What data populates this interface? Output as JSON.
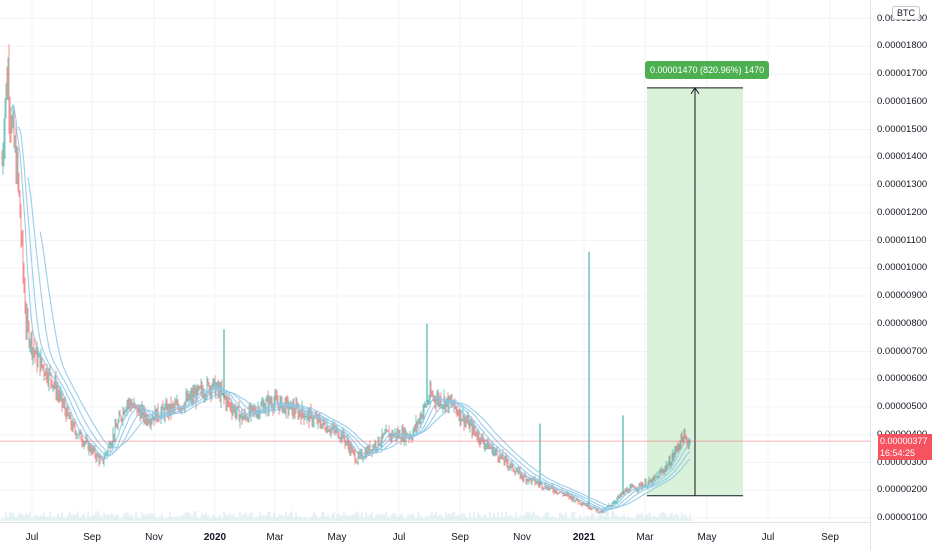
{
  "symbol_currency": "BTC",
  "last_price": "0.00000377",
  "countdown": "16:54:25",
  "measure_label": "0.00001470 (820.96%) 1470",
  "colors": {
    "up": "#26a69a",
    "down": "#ef5350",
    "ma": "#8ec9e8",
    "price_line": "#f7525f",
    "measure_fill": "#d6efd6",
    "measure_label": "#4caf50"
  },
  "chart_data": {
    "type": "candlestick",
    "y_tick_labels": [
      "0.00001900",
      "0.00001800",
      "0.00001700",
      "0.00001600",
      "0.00001500",
      "0.00001400",
      "0.00001300",
      "0.00001200",
      "0.00001100",
      "0.00001000",
      "0.00000900",
      "0.00000800",
      "0.00000700",
      "0.00000600",
      "0.00000500",
      "0.00000400",
      "0.00000300",
      "0.00000200",
      "0.00000100"
    ],
    "x_tick_labels": [
      "Jul",
      "Sep",
      "Nov",
      "2020",
      "Mar",
      "May",
      "Jul",
      "Sep",
      "Nov",
      "2021",
      "Mar",
      "May",
      "Jul",
      "Sep"
    ],
    "ylim": [
      9e-07,
      1.92e-05
    ],
    "price_path": [
      {
        "t": 0,
        "v": 1.38e-05
      },
      {
        "t": 3,
        "v": 1.6e-05
      },
      {
        "t": 6,
        "v": 1.7e-05
      },
      {
        "t": 10,
        "v": 1.5e-05
      },
      {
        "t": 16,
        "v": 1.32e-05
      },
      {
        "t": 24,
        "v": 8e-06
      },
      {
        "t": 34,
        "v": 6.8e-06
      },
      {
        "t": 50,
        "v": 6e-06
      },
      {
        "t": 70,
        "v": 4.3e-06
      },
      {
        "t": 100,
        "v": 3e-06
      },
      {
        "t": 125,
        "v": 5.2e-06
      },
      {
        "t": 145,
        "v": 4.6e-06
      },
      {
        "t": 175,
        "v": 5e-06
      },
      {
        "t": 210,
        "v": 5.8e-06
      },
      {
        "t": 240,
        "v": 4.6e-06
      },
      {
        "t": 270,
        "v": 5.2e-06
      },
      {
        "t": 300,
        "v": 4.8e-06
      },
      {
        "t": 340,
        "v": 4e-06
      },
      {
        "t": 355,
        "v": 3.1e-06
      },
      {
        "t": 385,
        "v": 4e-06
      },
      {
        "t": 410,
        "v": 4e-06
      },
      {
        "t": 428,
        "v": 5.4e-06
      },
      {
        "t": 450,
        "v": 5.1e-06
      },
      {
        "t": 480,
        "v": 3.8e-06
      },
      {
        "t": 520,
        "v": 2.5e-06
      },
      {
        "t": 560,
        "v": 1.9e-06
      },
      {
        "t": 600,
        "v": 1.2e-06
      },
      {
        "t": 625,
        "v": 2e-06
      },
      {
        "t": 650,
        "v": 2.3e-06
      },
      {
        "t": 668,
        "v": 3e-06
      },
      {
        "t": 680,
        "v": 3.9e-06
      },
      {
        "t": 688,
        "v": 3.7e-06
      }
    ],
    "spikes": [
      {
        "t": 587,
        "v": 1.06e-05
      },
      {
        "t": 425,
        "v": 8e-06
      },
      {
        "t": 222,
        "v": 7.8e-06
      },
      {
        "t": 621,
        "v": 4.7e-06
      },
      {
        "t": 538,
        "v": 4.4e-06
      }
    ],
    "measure": {
      "from": 1.8e-06,
      "to": 1.65e-05,
      "change": 1.47e-05,
      "percent": 820.96,
      "ticks": 1470
    }
  }
}
